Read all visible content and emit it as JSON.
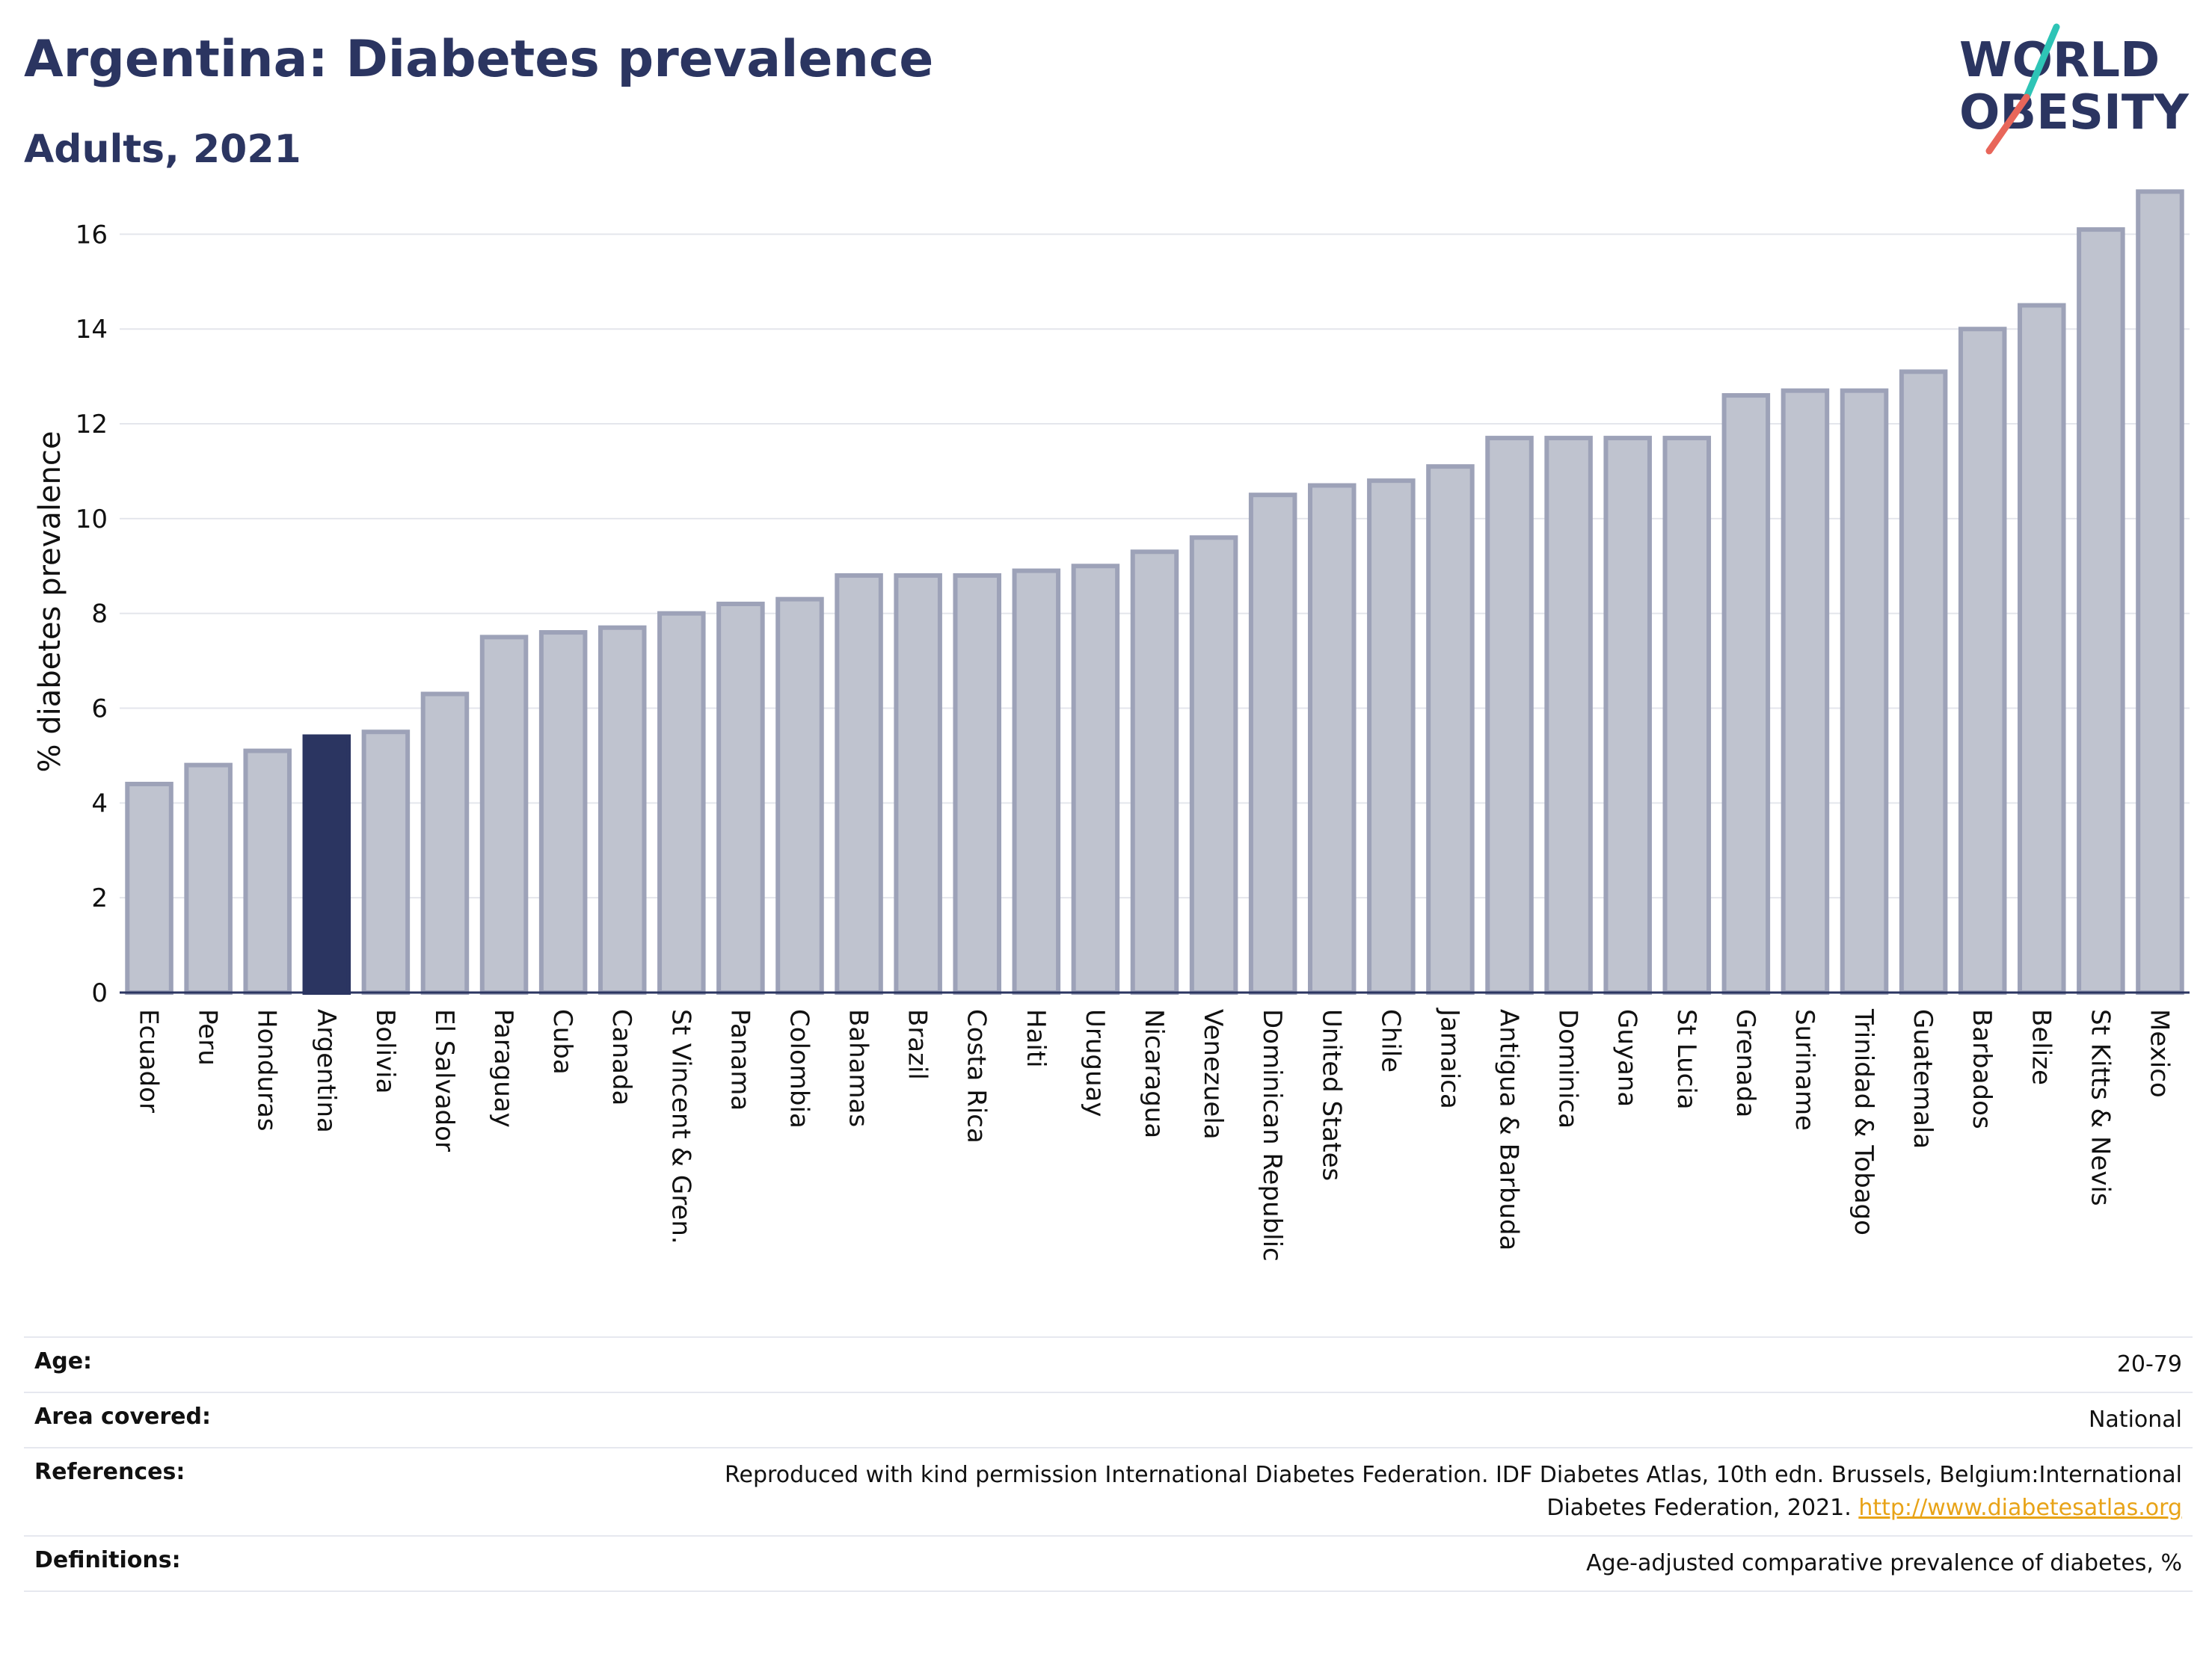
{
  "header": {
    "title": "Argentina: Diabetes prevalence",
    "subtitle": "Adults, 2021"
  },
  "logo": {
    "line1": "WORLD",
    "line2": "OBESITY",
    "accent_teal": "#2ec4b6",
    "accent_coral": "#e8665a",
    "color": "#2b3561"
  },
  "chart_data": {
    "type": "bar",
    "ylabel": "% diabetes prevalence",
    "ylim": [
      0,
      17
    ],
    "yticks": [
      0,
      2,
      4,
      6,
      8,
      10,
      12,
      14,
      16
    ],
    "grid": true,
    "highlight": "Argentina",
    "colors": {
      "bar": "#bfc3cf",
      "bar_border": "#9da2b8",
      "highlight": "#2b3561"
    },
    "categories": [
      "Ecuador",
      "Peru",
      "Honduras",
      "Argentina",
      "Bolivia",
      "El Salvador",
      "Paraguay",
      "Cuba",
      "Canada",
      "St Vincent & Gren.",
      "Panama",
      "Colombia",
      "Bahamas",
      "Brazil",
      "Costa Rica",
      "Haiti",
      "Uruguay",
      "Nicaragua",
      "Venezuela",
      "Dominican Republic",
      "United States",
      "Chile",
      "Jamaica",
      "Antigua & Barbuda",
      "Dominica",
      "Guyana",
      "St Lucia",
      "Grenada",
      "Suriname",
      "Trinidad & Tobago",
      "Guatemala",
      "Barbados",
      "Belize",
      "St Kitts & Nevis",
      "Mexico"
    ],
    "values": [
      4.4,
      4.8,
      5.1,
      5.4,
      5.5,
      6.3,
      7.5,
      7.6,
      7.7,
      8.0,
      8.2,
      8.3,
      8.8,
      8.8,
      8.8,
      8.9,
      9.0,
      9.3,
      9.6,
      10.5,
      10.7,
      10.8,
      11.1,
      11.7,
      11.7,
      11.7,
      11.7,
      12.6,
      12.7,
      12.7,
      13.1,
      14.0,
      14.5,
      16.1,
      16.9
    ]
  },
  "meta": {
    "age_label": "Age:",
    "age_value": "20-79",
    "area_label": "Area covered:",
    "area_value": "National",
    "references_label": "References:",
    "references_line1": "Reproduced with kind permission International Diabetes Federation.  IDF Diabetes Atlas, 10th edn. Brussels, Belgium:International",
    "references_line2": "Diabetes Federation, 2021.",
    "references_link": "http://www.diabetesatlas.org",
    "definitions_label": "Definitions:",
    "definitions_value": "Age-adjusted comparative prevalence of diabetes, %"
  }
}
